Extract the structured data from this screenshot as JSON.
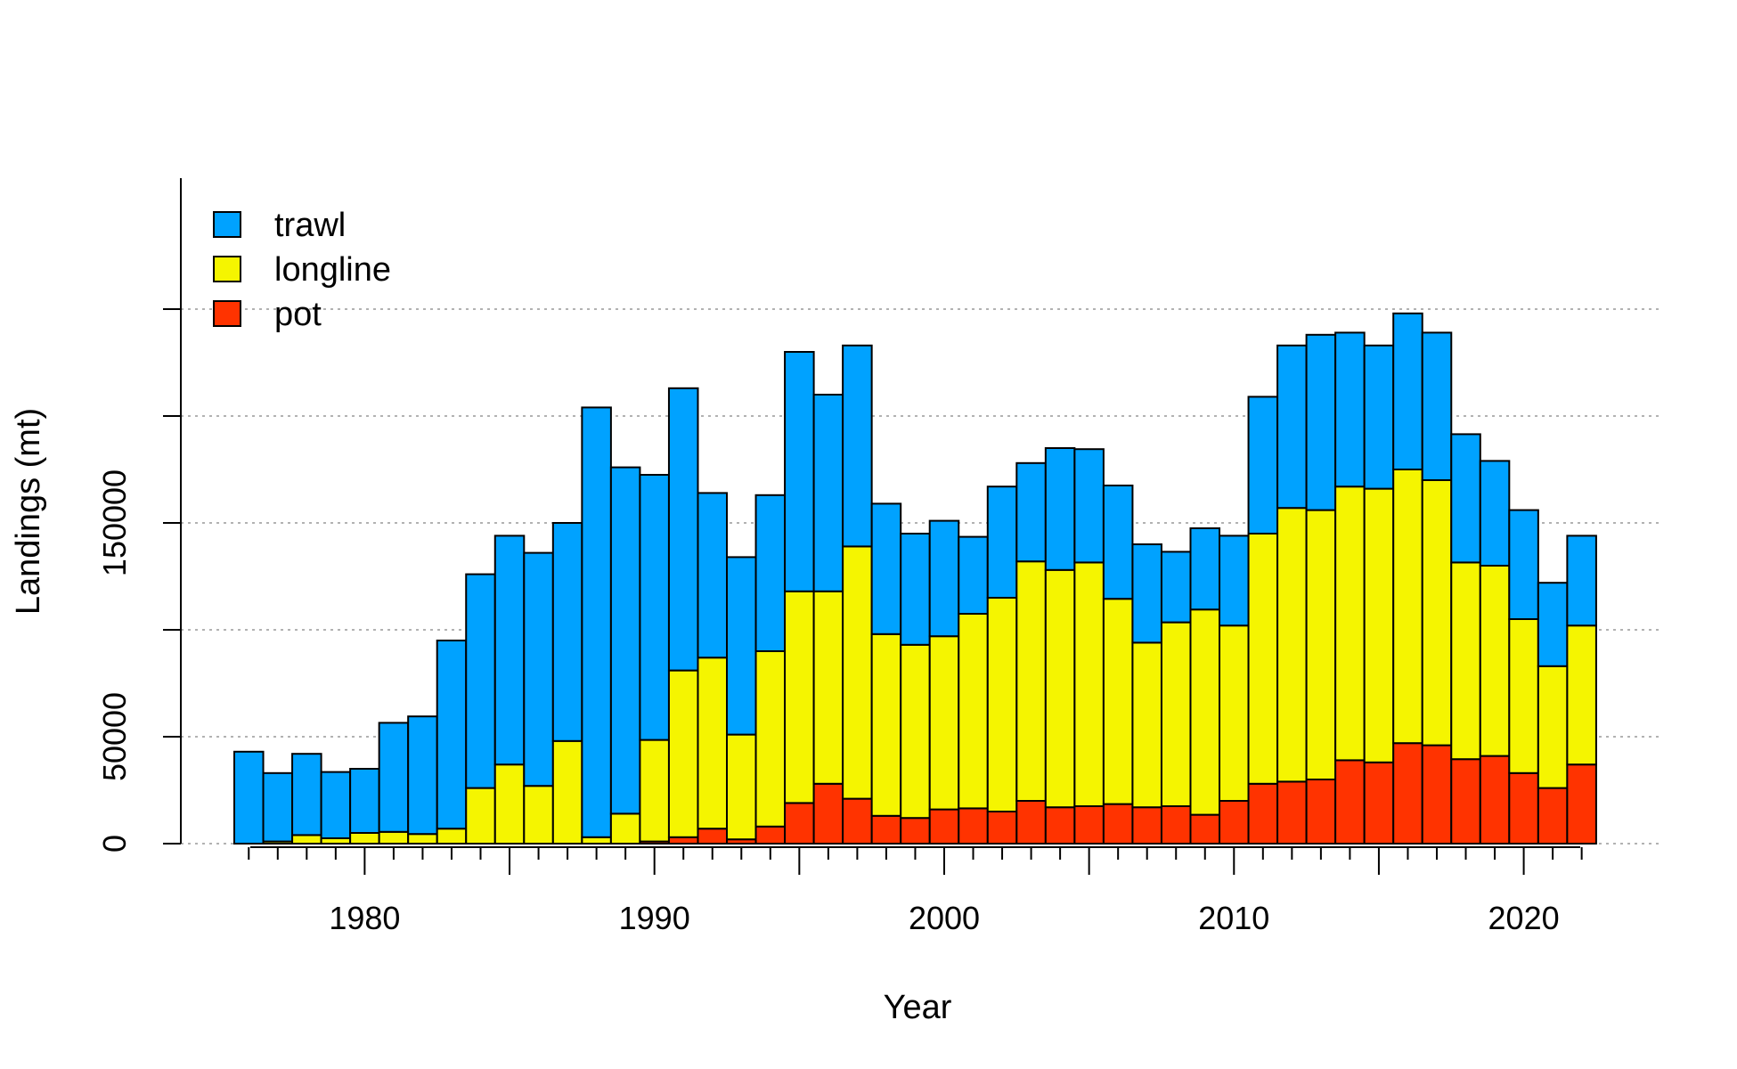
{
  "chart_data": {
    "type": "bar",
    "stacked": true,
    "xlabel": "Year",
    "ylabel": "Landings (mt)",
    "ylim": [
      0,
      250000
    ],
    "grid": "horizontal dotted",
    "legend": {
      "placement": "top-left",
      "entries": [
        "trawl",
        "longline",
        "pot"
      ]
    },
    "x_ticks": [
      "1980",
      "1990",
      "2000",
      "2010",
      "2020"
    ],
    "y_ticks": [
      "0",
      "50000",
      "150000"
    ],
    "colors": {
      "trawl": "#00A2FF",
      "longline": "#F5F500",
      "pot": "#FF3300"
    },
    "categories": [
      1976,
      1977,
      1978,
      1979,
      1980,
      1981,
      1982,
      1983,
      1984,
      1985,
      1986,
      1987,
      1988,
      1989,
      1990,
      1991,
      1992,
      1993,
      1994,
      1995,
      1996,
      1997,
      1998,
      1999,
      2000,
      2001,
      2002,
      2003,
      2004,
      2005,
      2006,
      2007,
      2008,
      2009,
      2010,
      2011,
      2012,
      2013,
      2014,
      2015,
      2016,
      2017,
      2018,
      2019,
      2020,
      2021,
      2022
    ],
    "series": [
      {
        "name": "pot",
        "values": [
          0,
          0,
          0,
          0,
          0,
          0,
          0,
          0,
          0,
          0,
          0,
          0,
          0,
          0,
          1000,
          3000,
          7000,
          2000,
          8000,
          19000,
          28000,
          21000,
          13000,
          12000,
          16000,
          16500,
          15000,
          20000,
          17000,
          17500,
          18500,
          17000,
          17500,
          13500,
          20000,
          28000,
          29000,
          30000,
          39000,
          38000,
          47000,
          46000,
          39500,
          41000,
          33000,
          26000,
          37000
        ]
      },
      {
        "name": "longline",
        "values": [
          0,
          1000,
          4000,
          2500,
          5000,
          5500,
          4500,
          7000,
          26000,
          37000,
          27000,
          48000,
          3000,
          14000,
          47500,
          78000,
          80000,
          49000,
          82000,
          99000,
          90000,
          118000,
          85000,
          81000,
          81000,
          91000,
          100000,
          112000,
          111000,
          114000,
          96000,
          77000,
          86000,
          96000,
          82000,
          117000,
          128000,
          126000,
          128000,
          128000,
          128000,
          124000,
          92000,
          89000,
          72000,
          57000,
          65000
        ]
      },
      {
        "name": "trawl",
        "values": [
          43000,
          32000,
          38000,
          31000,
          30000,
          51000,
          55000,
          88000,
          100000,
          107000,
          109000,
          102000,
          201000,
          162000,
          124000,
          132000,
          77000,
          83000,
          73000,
          112000,
          92000,
          94000,
          61000,
          52000,
          54000,
          36000,
          52000,
          46000,
          57000,
          53000,
          53000,
          46000,
          33000,
          38000,
          42000,
          64000,
          76000,
          82000,
          72000,
          67000,
          73000,
          69000,
          60000,
          49000,
          51000,
          39000,
          42000
        ]
      }
    ]
  }
}
